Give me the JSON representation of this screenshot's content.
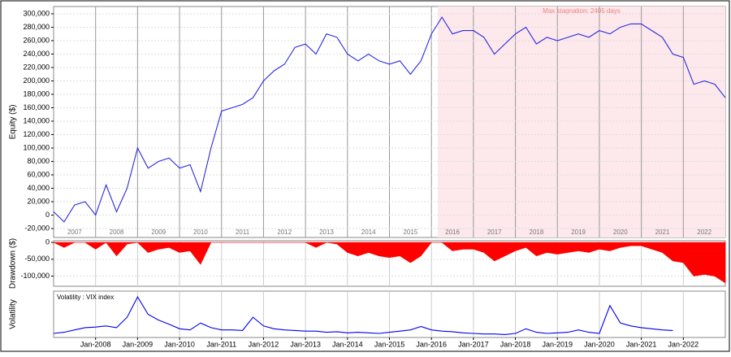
{
  "chart_data": [
    {
      "type": "line",
      "ylabel": "Equity ($)",
      "xlim": [
        2007,
        2023
      ],
      "ylim": [
        -33300,
        310900
      ],
      "yticks": [
        {
          "value": -20000,
          "label": "-20,000"
        },
        0,
        {
          "value": 20000,
          "label": "20,000"
        },
        {
          "value": 40000,
          "label": "40,000"
        },
        {
          "value": 60000,
          "label": "60,000"
        },
        {
          "value": 80000,
          "label": "80,000"
        },
        {
          "value": 100000,
          "label": "100,000"
        },
        {
          "value": 120000,
          "label": "120,000"
        },
        {
          "value": 140000,
          "label": "140,000"
        },
        {
          "value": 160000,
          "label": "160,000"
        },
        {
          "value": 180000,
          "label": "180,000"
        },
        {
          "value": 200000,
          "label": "200,000"
        },
        {
          "value": 220000,
          "label": "220,000"
        },
        {
          "value": 240000,
          "label": "240,000"
        },
        {
          "value": 260000,
          "label": "260,000"
        },
        {
          "value": 280000,
          "label": "280,000"
        },
        {
          "value": 300000,
          "label": "300,000"
        }
      ],
      "xticks": [
        {
          "value": 2007.5,
          "label": "2007"
        },
        {
          "value": 2008.5,
          "label": "2008"
        },
        {
          "value": 2009.5,
          "label": "2009"
        },
        {
          "value": 2010.5,
          "label": "2010"
        },
        {
          "value": 2011.5,
          "label": "2011"
        },
        {
          "value": 2012.5,
          "label": "2012"
        },
        {
          "value": 2013.5,
          "label": "2013"
        },
        {
          "value": 2014.5,
          "label": "2014"
        },
        {
          "value": 2015.5,
          "label": "2015"
        },
        {
          "value": 2016.5,
          "label": "2016"
        },
        {
          "value": 2017.5,
          "label": "2017"
        },
        {
          "value": 2018.5,
          "label": "2018"
        },
        {
          "value": 2019.5,
          "label": "2019"
        },
        {
          "value": 2020.5,
          "label": "2020"
        },
        {
          "value": 2021.5,
          "label": "2021"
        },
        {
          "value": 2022.5,
          "label": "2022"
        }
      ],
      "stagnation": {
        "label": "Max stagnation: 2405 days",
        "x": [
          2016.15,
          2023
        ],
        "color": "#fde8ec"
      },
      "series": [
        {
          "color": "#2a2ae0",
          "x": [
            2007,
            2007.25,
            2007.5,
            2007.75,
            2008,
            2008.25,
            2008.5,
            2008.75,
            2009,
            2009.25,
            2009.5,
            2009.75,
            2010,
            2010.25,
            2010.5,
            2010.75,
            2011,
            2011.25,
            2011.5,
            2011.75,
            2012,
            2012.25,
            2012.5,
            2012.75,
            2013,
            2013.25,
            2013.5,
            2013.75,
            2014,
            2014.25,
            2014.5,
            2014.75,
            2015,
            2015.25,
            2015.5,
            2015.75,
            2016,
            2016.25,
            2016.5,
            2016.75,
            2017,
            2017.25,
            2017.5,
            2017.75,
            2018,
            2018.25,
            2018.5,
            2018.75,
            2019,
            2019.25,
            2019.5,
            2019.75,
            2020,
            2020.25,
            2020.5,
            2020.75,
            2021,
            2021.25,
            2021.5,
            2021.75,
            2022,
            2022.25,
            2022.5,
            2022.75,
            2023
          ],
          "values": [
            5000,
            -10000,
            15000,
            20000,
            0,
            45000,
            5000,
            40000,
            100000,
            70000,
            80000,
            85000,
            70000,
            75000,
            35000,
            100000,
            155000,
            160000,
            165000,
            175000,
            200000,
            215000,
            225000,
            250000,
            255000,
            240000,
            270000,
            265000,
            240000,
            230000,
            240000,
            230000,
            225000,
            230000,
            210000,
            230000,
            270000,
            295000,
            270000,
            275000,
            275000,
            265000,
            240000,
            255000,
            270000,
            280000,
            255000,
            265000,
            260000,
            265000,
            270000,
            265000,
            275000,
            270000,
            280000,
            285000,
            285000,
            275000,
            265000,
            240000,
            235000,
            195000,
            200000,
            195000,
            175000
          ]
        }
      ]
    },
    {
      "type": "area",
      "ylabel": "Drawdown ($)",
      "xlim": [
        2007,
        2023
      ],
      "ylim": [
        -130000,
        5000
      ],
      "yticks": [
        {
          "value": -100000,
          "label": "-100,000"
        },
        {
          "value": -50000,
          "label": "-50,000"
        },
        0
      ],
      "series": [
        {
          "color": "#ff0000",
          "x": [
            2007,
            2007.25,
            2007.5,
            2007.75,
            2008,
            2008.25,
            2008.5,
            2008.75,
            2009,
            2009.25,
            2009.5,
            2009.75,
            2010,
            2010.25,
            2010.5,
            2010.75,
            2011,
            2011.25,
            2011.5,
            2011.75,
            2012,
            2012.25,
            2012.5,
            2012.75,
            2013,
            2013.25,
            2013.5,
            2013.75,
            2014,
            2014.25,
            2014.5,
            2014.75,
            2015,
            2015.25,
            2015.5,
            2015.75,
            2016,
            2016.25,
            2016.5,
            2016.75,
            2017,
            2017.25,
            2017.5,
            2017.75,
            2018,
            2018.25,
            2018.5,
            2018.75,
            2019,
            2019.25,
            2019.5,
            2019.75,
            2020,
            2020.25,
            2020.5,
            2020.75,
            2021,
            2021.25,
            2021.5,
            2021.75,
            2022,
            2022.25,
            2022.5,
            2022.75,
            2023
          ],
          "values": [
            0,
            -15000,
            0,
            0,
            -20000,
            0,
            -40000,
            -5000,
            0,
            -30000,
            -20000,
            -15000,
            -30000,
            -25000,
            -65000,
            0,
            0,
            0,
            0,
            0,
            0,
            0,
            0,
            0,
            0,
            -15000,
            0,
            -5000,
            -30000,
            -40000,
            -30000,
            -40000,
            -45000,
            -40000,
            -60000,
            -40000,
            0,
            0,
            -25000,
            -20000,
            -20000,
            -30000,
            -55000,
            -40000,
            -25000,
            -15000,
            -40000,
            -30000,
            -35000,
            -30000,
            -25000,
            -30000,
            -20000,
            -25000,
            -15000,
            -10000,
            -10000,
            -20000,
            -30000,
            -55000,
            -60000,
            -100000,
            -95000,
            -100000,
            -120000
          ]
        }
      ]
    },
    {
      "type": "line",
      "ylabel": "Volatility",
      "label": "Volatility : VIX index",
      "xlim": [
        2007,
        2023
      ],
      "ylim": [
        5,
        85
      ],
      "xticks": [
        {
          "value": 2008,
          "label": "Jan-2008"
        },
        {
          "value": 2009,
          "label": "Jan-2009"
        },
        {
          "value": 2010,
          "label": "Jan-2010"
        },
        {
          "value": 2011,
          "label": "Jan-2011"
        },
        {
          "value": 2012,
          "label": "Jan-2012"
        },
        {
          "value": 2013,
          "label": "Jan-2013"
        },
        {
          "value": 2014,
          "label": "Jan-2014"
        },
        {
          "value": 2015,
          "label": "Jan-2015"
        },
        {
          "value": 2016,
          "label": "Jan-2016"
        },
        {
          "value": 2017,
          "label": "Jan-2017"
        },
        {
          "value": 2018,
          "label": "Jan-2018"
        },
        {
          "value": 2019,
          "label": "Jan-2019"
        },
        {
          "value": 2020,
          "label": "Jan-2020"
        },
        {
          "value": 2021,
          "label": "Jan-2021"
        },
        {
          "value": 2022,
          "label": "Jan-2022"
        }
      ],
      "series": [
        {
          "color": "#0000ee",
          "x": [
            2007,
            2007.25,
            2007.5,
            2007.75,
            2008,
            2008.25,
            2008.5,
            2008.75,
            2009,
            2009.25,
            2009.5,
            2009.75,
            2010,
            2010.25,
            2010.5,
            2010.75,
            2011,
            2011.25,
            2011.5,
            2011.75,
            2012,
            2012.25,
            2012.5,
            2012.75,
            2013,
            2013.25,
            2013.5,
            2013.75,
            2014,
            2014.25,
            2014.5,
            2014.75,
            2015,
            2015.25,
            2015.5,
            2015.75,
            2016,
            2016.25,
            2016.5,
            2016.75,
            2017,
            2017.25,
            2017.5,
            2017.75,
            2018,
            2018.25,
            2018.5,
            2018.75,
            2019,
            2019.25,
            2019.5,
            2019.75,
            2020,
            2020.25,
            2020.5,
            2020.75,
            2021,
            2021.25,
            2021.5,
            2021.75
          ],
          "values": [
            12,
            14,
            18,
            22,
            23,
            25,
            22,
            40,
            75,
            45,
            35,
            28,
            20,
            18,
            30,
            22,
            18,
            18,
            17,
            40,
            25,
            20,
            18,
            17,
            16,
            16,
            14,
            15,
            13,
            14,
            13,
            12,
            14,
            16,
            18,
            24,
            18,
            16,
            15,
            13,
            12,
            11,
            11,
            10,
            12,
            20,
            14,
            12,
            13,
            14,
            18,
            14,
            12,
            60,
            30,
            25,
            22,
            20,
            18,
            17
          ]
        }
      ]
    }
  ]
}
